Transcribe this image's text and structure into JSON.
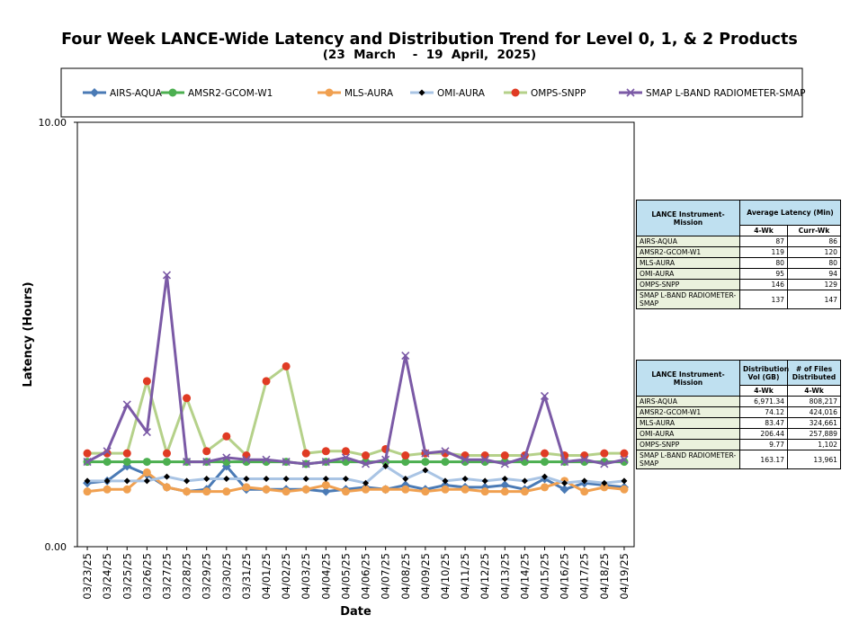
{
  "title": "Four Week LANCE-Wide Latency and Distribution Trend for Level 0, 1, & 2 Products",
  "subtitle": "(23  March    -  19  April,  2025)",
  "chart_data": {
    "type": "line",
    "title": "Four Week LANCE-Wide Latency and Distribution Trend for Level 0, 1, & 2 Products",
    "subtitle": "(23  March    -  19  April,  2025)",
    "xlabel": "Date",
    "ylabel": "Latency (Hours)",
    "ylim": [
      0,
      10
    ],
    "y_ticks": [
      "0.00",
      "10.00"
    ],
    "grid": false,
    "legend_position": "top",
    "categories": [
      "03/23/25",
      "03/24/25",
      "03/25/25",
      "03/26/25",
      "03/27/25",
      "03/28/25",
      "03/29/25",
      "03/30/25",
      "03/31/25",
      "04/01/25",
      "04/02/25",
      "04/03/25",
      "04/04/25",
      "04/05/25",
      "04/06/25",
      "04/07/25",
      "04/08/25",
      "04/09/25",
      "04/10/25",
      "04/11/25",
      "04/12/25",
      "04/13/25",
      "04/14/25",
      "04/15/25",
      "04/16/25",
      "04/17/25",
      "04/18/25",
      "04/19/25"
    ],
    "series": [
      {
        "name": "AIRS-AQUA",
        "color": "#4a7ab5",
        "marker": "diamond",
        "values": [
          1.5,
          1.55,
          1.9,
          1.7,
          1.4,
          1.3,
          1.35,
          1.9,
          1.35,
          1.35,
          1.35,
          1.35,
          1.3,
          1.35,
          1.4,
          1.35,
          1.45,
          1.35,
          1.45,
          1.4,
          1.4,
          1.45,
          1.35,
          1.6,
          1.35,
          1.5,
          1.45,
          1.4
        ]
      },
      {
        "name": "AMSR2-GCOM-W1",
        "color": "#4caf50",
        "marker": "circle",
        "values": [
          2.0,
          2.0,
          2.0,
          2.0,
          2.0,
          2.0,
          2.0,
          2.0,
          2.0,
          2.0,
          2.0,
          1.95,
          2.0,
          2.0,
          2.0,
          2.0,
          2.0,
          2.0,
          2.0,
          2.0,
          2.0,
          2.0,
          2.0,
          2.0,
          2.0,
          2.0,
          2.0,
          2.0
        ]
      },
      {
        "name": "MLS-AURA",
        "color": "#f0a050",
        "marker": "circle",
        "values": [
          1.3,
          1.35,
          1.35,
          1.75,
          1.4,
          1.3,
          1.3,
          1.3,
          1.4,
          1.35,
          1.3,
          1.35,
          1.45,
          1.3,
          1.35,
          1.35,
          1.35,
          1.3,
          1.35,
          1.35,
          1.3,
          1.3,
          1.3,
          1.4,
          1.55,
          1.3,
          1.4,
          1.35
        ]
      },
      {
        "name": "OMI-AURA",
        "color": "#a9c4e4",
        "marker": "diamond-black",
        "values": [
          1.55,
          1.55,
          1.55,
          1.55,
          1.65,
          1.55,
          1.6,
          1.6,
          1.6,
          1.6,
          1.6,
          1.6,
          1.6,
          1.6,
          1.5,
          1.9,
          1.6,
          1.8,
          1.55,
          1.6,
          1.55,
          1.6,
          1.55,
          1.65,
          1.5,
          1.55,
          1.5,
          1.55
        ]
      },
      {
        "name": "OMPS-SNPP",
        "color": "#b5d18a",
        "marker": "circle-red",
        "values": [
          2.2,
          2.2,
          2.2,
          3.9,
          2.2,
          3.5,
          2.25,
          2.6,
          2.15,
          3.9,
          4.25,
          2.2,
          2.25,
          2.25,
          2.15,
          2.3,
          2.15,
          2.2,
          2.2,
          2.15,
          2.15,
          2.15,
          2.15,
          2.2,
          2.15,
          2.15,
          2.2,
          2.2
        ]
      },
      {
        "name": "SMAP L-BAND RADIOMETER-SMAP",
        "color": "#7b5aa6",
        "marker": "x",
        "values": [
          2.0,
          2.25,
          3.35,
          2.7,
          6.4,
          2.0,
          2.0,
          2.1,
          2.05,
          2.05,
          2.0,
          1.95,
          2.0,
          2.1,
          1.95,
          2.05,
          4.5,
          2.2,
          2.25,
          2.05,
          2.05,
          1.95,
          2.1,
          3.55,
          2.0,
          2.05,
          1.95,
          2.05
        ]
      }
    ]
  },
  "latency_table": {
    "header_mission": "LANCE Instrument-Mission",
    "header_avg": "Average Latency (Min)",
    "col1": "4-Wk",
    "col2": "Curr-Wk",
    "rows": [
      {
        "name": "AIRS-AQUA",
        "v1": "87",
        "v2": "86"
      },
      {
        "name": "AMSR2-GCOM-W1",
        "v1": "119",
        "v2": "120"
      },
      {
        "name": "MLS-AURA",
        "v1": "80",
        "v2": "80"
      },
      {
        "name": "OMI-AURA",
        "v1": "95",
        "v2": "94"
      },
      {
        "name": "OMPS-SNPP",
        "v1": "146",
        "v2": "129"
      },
      {
        "name": "SMAP L-BAND RADIOMETER-SMAP",
        "v1": "137",
        "v2": "147"
      }
    ]
  },
  "distribution_table": {
    "header_mission": "LANCE Instrument-Mission",
    "header_vol": "Distribution Vol (GB)",
    "header_files": "# of Files Distributed",
    "col1": "4-Wk",
    "col2": "4-Wk",
    "rows": [
      {
        "name": "AIRS-AQUA",
        "v1": "6,971.34",
        "v2": "808,217"
      },
      {
        "name": "AMSR2-GCOM-W1",
        "v1": "74.12",
        "v2": "424,016"
      },
      {
        "name": "MLS-AURA",
        "v1": "83.47",
        "v2": "324,661"
      },
      {
        "name": "OMI-AURA",
        "v1": "206.44",
        "v2": "257,889"
      },
      {
        "name": "OMPS-SNPP",
        "v1": "9.77",
        "v2": "1,102"
      },
      {
        "name": "SMAP L-BAND RADIOMETER-SMAP",
        "v1": "163.17",
        "v2": "13,961"
      }
    ]
  }
}
